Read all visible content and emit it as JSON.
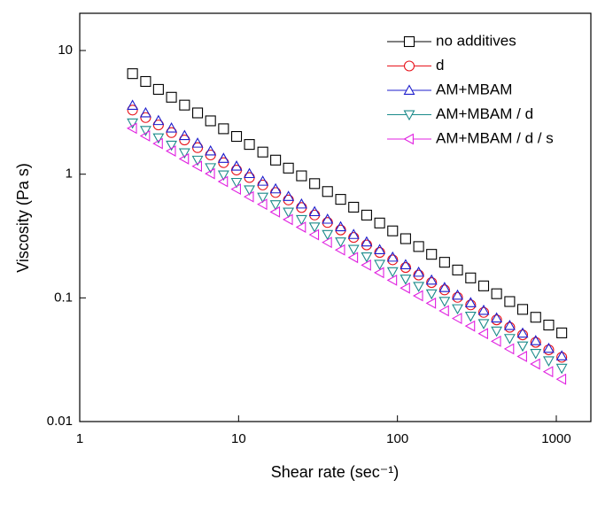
{
  "chart_data": {
    "type": "scatter",
    "x_label": "Shear rate (sec⁻¹)",
    "y_label": "Viscosity (Pa s)",
    "x_scale": "log",
    "y_scale": "log",
    "xlim": [
      1,
      1650
    ],
    "ylim": [
      0.01,
      20
    ],
    "xticks": [
      1,
      10,
      100,
      1000
    ],
    "yticks": [
      0.01,
      0.1,
      1,
      10
    ],
    "legend_position": "upper right",
    "x": [
      2.15,
      2.6,
      3.13,
      3.78,
      4.57,
      5.52,
      6.66,
      8.04,
      9.71,
      11.7,
      14.2,
      17.1,
      20.6,
      24.9,
      30.1,
      36.3,
      43.9,
      53.0,
      64.0,
      77.3,
      93.3,
      112.6,
      136,
      164,
      198,
      239,
      289,
      349,
      421,
      509,
      614,
      742,
      896,
      1082
    ],
    "series": [
      {
        "name": "no additives",
        "color": "#000000",
        "marker": "square",
        "values": [
          6.5,
          5.62,
          4.85,
          4.19,
          3.62,
          3.13,
          2.7,
          2.33,
          2.02,
          1.74,
          1.51,
          1.3,
          1.12,
          0.97,
          0.839,
          0.724,
          0.626,
          0.541,
          0.467,
          0.403,
          0.348,
          0.301,
          0.26,
          0.225,
          0.194,
          0.168,
          0.145,
          0.125,
          0.108,
          0.0934,
          0.0807,
          0.0697,
          0.0603,
          0.0521
        ]
      },
      {
        "name": "d",
        "color": "#e8141c",
        "marker": "circle",
        "values": [
          3.3,
          2.87,
          2.5,
          2.17,
          1.89,
          1.64,
          1.43,
          1.24,
          1.08,
          0.94,
          0.818,
          0.711,
          0.619,
          0.538,
          0.468,
          0.407,
          0.354,
          0.308,
          0.268,
          0.233,
          0.203,
          0.176,
          0.153,
          0.133,
          0.116,
          0.101,
          0.0878,
          0.0763,
          0.0664,
          0.0578,
          0.0502,
          0.0437,
          0.038,
          0.0331
        ]
      },
      {
        "name": "AM+MBAM",
        "color": "#1c1ccc",
        "marker": "triangle-up",
        "values": [
          3.6,
          3.13,
          2.71,
          2.36,
          2.05,
          1.78,
          1.54,
          1.34,
          1.16,
          1.01,
          0.876,
          0.76,
          0.66,
          0.573,
          0.497,
          0.432,
          0.375,
          0.325,
          0.283,
          0.245,
          0.213,
          0.185,
          0.161,
          0.139,
          0.121,
          0.105,
          0.0912,
          0.0792,
          0.0687,
          0.0597,
          0.0518,
          0.045,
          0.039,
          0.0339
        ]
      },
      {
        "name": "AM+MBAM / d",
        "color": "#1a8a8a",
        "marker": "triangle-down",
        "values": [
          2.6,
          2.26,
          1.97,
          1.72,
          1.49,
          1.3,
          1.13,
          0.987,
          0.859,
          0.748,
          0.652,
          0.567,
          0.494,
          0.43,
          0.375,
          0.326,
          0.284,
          0.247,
          0.215,
          0.187,
          0.163,
          0.142,
          0.124,
          0.108,
          0.0939,
          0.0818,
          0.0712,
          0.062,
          0.054,
          0.047,
          0.0409,
          0.0356,
          0.031,
          0.027
        ]
      },
      {
        "name": "AM+MBAM / d / s",
        "color": "#e020e0",
        "marker": "triangle-left",
        "values": [
          2.35,
          2.04,
          1.77,
          1.54,
          1.33,
          1.16,
          1.01,
          0.872,
          0.757,
          0.657,
          0.571,
          0.495,
          0.43,
          0.373,
          0.324,
          0.281,
          0.244,
          0.212,
          0.184,
          0.16,
          0.139,
          0.12,
          0.104,
          0.0906,
          0.0786,
          0.0682,
          0.0592,
          0.0514,
          0.0446,
          0.0387,
          0.0336,
          0.0292,
          0.0253,
          0.022
        ]
      }
    ]
  }
}
